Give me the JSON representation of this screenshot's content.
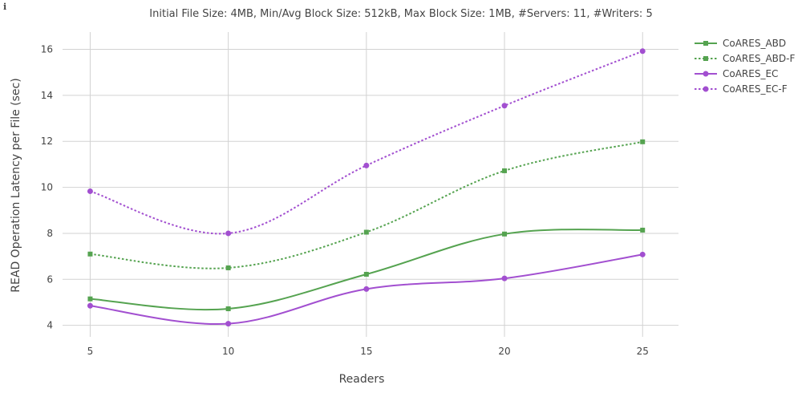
{
  "info_icon": "i",
  "chart_data": {
    "type": "line",
    "title": "Initial File Size: 4MB, Min/Avg Block Size: 512kB, Max Block Size: 1MB, #Servers: 11, #Writers: 5",
    "xlabel": "Readers",
    "ylabel": "READ Operation Latency per File (sec)",
    "x": [
      5,
      10,
      15,
      20,
      25
    ],
    "x_ticks": [
      5,
      10,
      15,
      20,
      25
    ],
    "y_ticks": [
      4,
      6,
      8,
      10,
      12,
      14,
      16
    ],
    "xlim": [
      4.0,
      26.3
    ],
    "ylim": [
      3.5,
      16.75
    ],
    "grid": true,
    "legend_position": "top-right",
    "series": [
      {
        "name": "CoARES_ABD",
        "values": [
          5.15,
          4.72,
          6.22,
          7.97,
          8.14
        ],
        "color": "#55a350",
        "dash": "solid",
        "marker": "square"
      },
      {
        "name": "CoARES_ABD-F",
        "values": [
          7.1,
          6.5,
          8.05,
          10.72,
          11.98
        ],
        "color": "#55a350",
        "dash": "dotted",
        "marker": "square"
      },
      {
        "name": "CoARES_EC",
        "values": [
          4.85,
          4.07,
          5.58,
          6.04,
          7.08
        ],
        "color": "#a24fd0",
        "dash": "solid",
        "marker": "circle"
      },
      {
        "name": "CoARES_EC-F",
        "values": [
          9.83,
          8.0,
          10.95,
          13.55,
          15.92
        ],
        "color": "#a24fd0",
        "dash": "dotted",
        "marker": "circle"
      }
    ]
  }
}
